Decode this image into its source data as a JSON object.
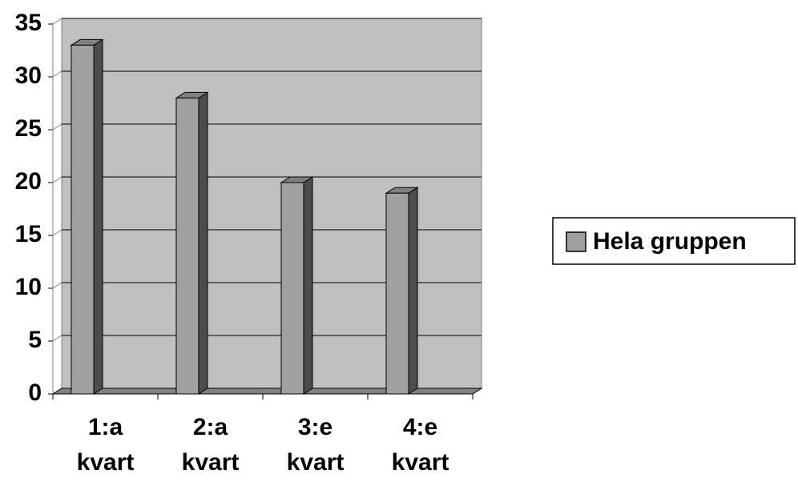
{
  "chart_data": {
    "type": "bar3d",
    "categories": [
      "1:a kvart",
      "2:a kvart",
      "3:e kvart",
      "4:e kvart"
    ],
    "series": [
      {
        "name": "Hela gruppen",
        "color": "#a0a0a0",
        "values": [
          33,
          28,
          20,
          19
        ]
      }
    ],
    "ylim": [
      0,
      35
    ],
    "yticks": [
      0,
      5,
      10,
      15,
      20,
      25,
      30,
      35
    ],
    "grid": true,
    "legend": "right"
  }
}
